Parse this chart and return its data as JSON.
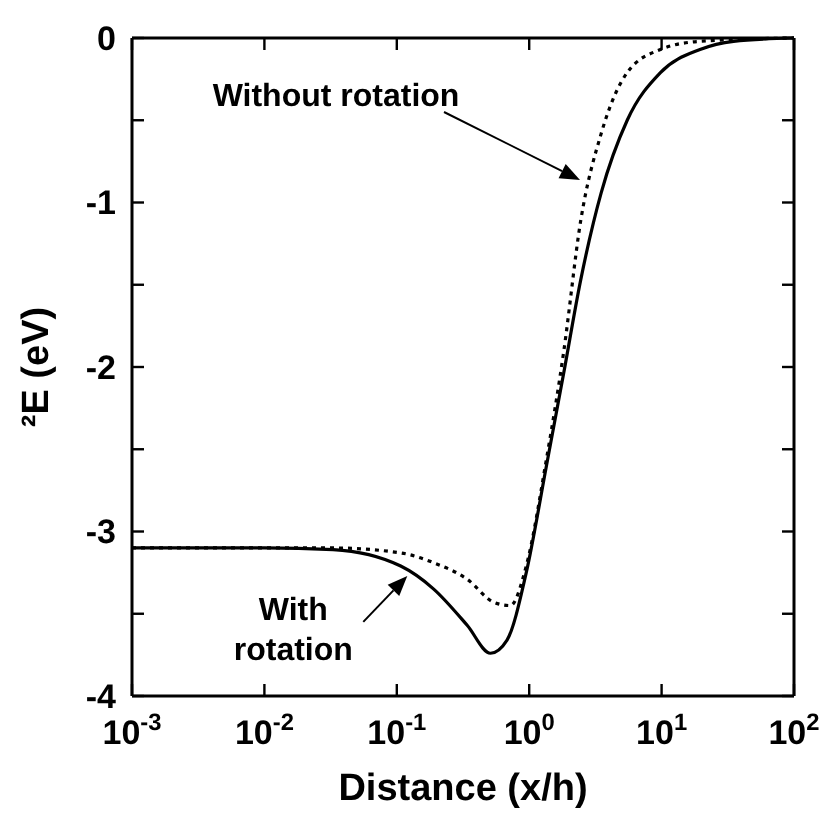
{
  "chart_data": {
    "type": "line",
    "xlabel": "Distance (x/h)",
    "ylabel": "²E (eV)",
    "log": "x",
    "xlim": [
      0.001,
      100
    ],
    "ylim": [
      -4,
      0
    ],
    "xticks": [
      {
        "value": 0.001,
        "label": "10$^{-3}$"
      },
      {
        "value": 0.01,
        "label": "10$^{-2}$"
      },
      {
        "value": 0.1,
        "label": "10$^{-1}$"
      },
      {
        "value": 1,
        "label": "10$^{0}$"
      },
      {
        "value": 10,
        "label": "10$^{1}$"
      },
      {
        "value": 100,
        "label": "10$^{2}$"
      }
    ],
    "yticks": [
      -4,
      {
        "value": -3.5,
        "label": null
      },
      -3,
      {
        "value": -2.5,
        "label": null
      },
      -2,
      {
        "value": -1.5,
        "label": null
      },
      -1,
      {
        "value": -0.5,
        "label": null
      },
      0
    ],
    "grid": false,
    "marker": "none",
    "series": [
      {
        "color": "#000000",
        "line_style": "solid",
        "x": [
          0.001,
          0.01,
          0.033,
          0.107,
          0.19,
          0.34,
          0.51,
          0.68,
          0.95,
          1.35,
          1.82,
          2.45,
          3.5,
          5.5,
          9.8,
          19.5,
          35,
          100
        ],
        "values": [
          -3.1,
          -3.1,
          -3.11,
          -3.21,
          -3.35,
          -3.57,
          -3.74,
          -3.66,
          -3.25,
          -2.6,
          -2.04,
          -1.47,
          -0.94,
          -0.5,
          -0.21,
          -0.07,
          -0.02,
          0
        ]
      },
      {
        "color": "#000000",
        "line_style": "dotted",
        "x": [
          0.001,
          0.01,
          0.033,
          0.107,
          0.19,
          0.34,
          0.54,
          0.72,
          0.95,
          1.35,
          1.82,
          2.45,
          3.5,
          5.5,
          9.8,
          19.5,
          100
        ],
        "values": [
          -3.1,
          -3.1,
          -3.1,
          -3.13,
          -3.19,
          -3.29,
          -3.43,
          -3.45,
          -3.21,
          -2.56,
          -1.91,
          -1.11,
          -0.58,
          -0.21,
          -0.07,
          -0.02,
          0
        ]
      }
    ],
    "annotations": [
      "Without rotation",
      {
        "text": "With\nrotation",
        "x": 0.12,
        "y": -3.27
      }
    ]
  }
}
